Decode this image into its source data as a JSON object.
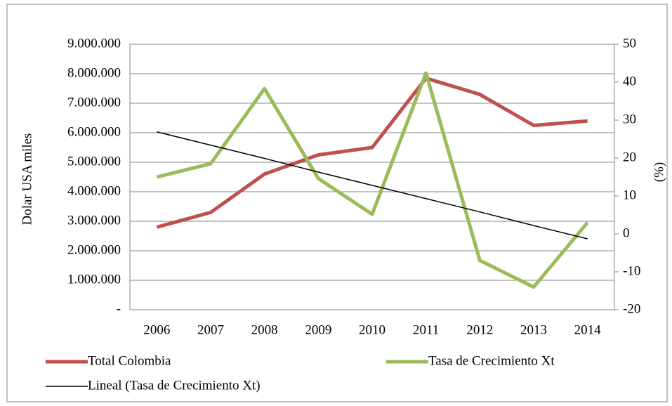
{
  "chart_data": {
    "type": "line",
    "categories": [
      "2006",
      "2007",
      "2008",
      "2009",
      "2010",
      "2011",
      "2012",
      "2013",
      "2014"
    ],
    "ylabel": "Dolar USA miles",
    "y2label": "(%)",
    "ylim": [
      0,
      9000000
    ],
    "yticks": [
      {
        "value": 0,
        "label": "-"
      },
      {
        "value": 1000000,
        "label": "1.000.000"
      },
      {
        "value": 2000000,
        "label": "2.000.000"
      },
      {
        "value": 3000000,
        "label": "3.000.000"
      },
      {
        "value": 4000000,
        "label": "4.000.000"
      },
      {
        "value": 5000000,
        "label": "5.000.000"
      },
      {
        "value": 6000000,
        "label": "6.000.000"
      },
      {
        "value": 7000000,
        "label": "7.000.000"
      },
      {
        "value": 8000000,
        "label": "8.000.000"
      },
      {
        "value": 9000000,
        "label": "9.000.000"
      }
    ],
    "y2lim": [
      -20,
      50
    ],
    "y2ticks": [
      -20,
      -10,
      0,
      10,
      20,
      30,
      40,
      50
    ],
    "grid": true,
    "legend": "bottom",
    "series": [
      {
        "name": "Total Colombia",
        "color": "#c0504d",
        "width": 5,
        "values": [
          2800000,
          3300000,
          4600000,
          5250000,
          5500000,
          7850000,
          7300000,
          6250000,
          6400000
        ]
      },
      {
        "name": "Tasa de Crecimiento Xt",
        "color": "#9bbb59",
        "width": 5,
        "axis": "y2",
        "values": [
          15,
          18.5,
          38.3,
          14.6,
          5.2,
          42.4,
          -7,
          -14,
          3
        ]
      },
      {
        "name": "Lineal (Tasa de Crecimiento Xt)",
        "color": "#000000",
        "width": 1.5,
        "axis": "y2",
        "values": [
          26.9,
          23.4,
          19.9,
          16.3,
          12.8,
          9.3,
          5.8,
          2.2,
          -1.3
        ]
      }
    ]
  }
}
